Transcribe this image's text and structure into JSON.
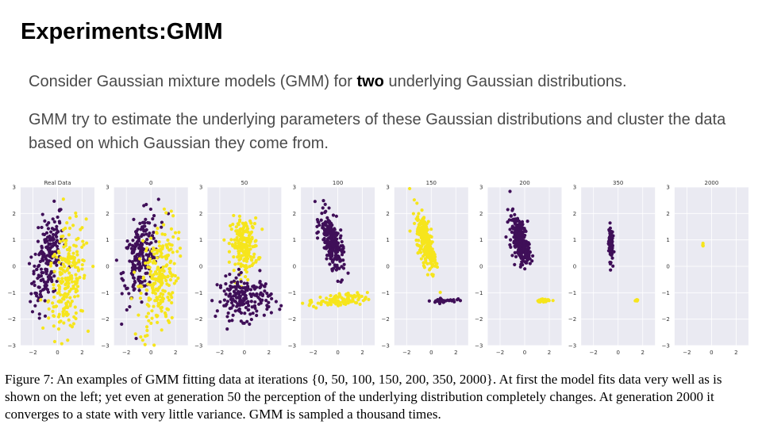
{
  "slide": {
    "title": "Experiments:GMM",
    "bullet1": {
      "pre": "Consider Gaussian mixture models (GMM) for ",
      "bold": "two",
      "post": " underlying Gaussian distributions."
    },
    "bullet2": "GMM try to estimate the underlying parameters of these Gaussian distributions and cluster the data based on which Gaussian they come from."
  },
  "colors": {
    "purple": "#3f0f58",
    "yellow": "#f6e51c"
  },
  "chart_data": [
    {
      "type": "scatter",
      "title": "Real Data",
      "xlim": [
        -3,
        3
      ],
      "ylim": [
        -3,
        3
      ],
      "xticks": [
        -2,
        0,
        2
      ],
      "yticks": [
        3,
        2,
        1,
        0,
        -1,
        -2,
        -3
      ],
      "series": [
        {
          "color": "purple",
          "cx": -0.8,
          "cy": 0.3,
          "sx": 0.65,
          "sy": 0.9,
          "rho": 0.5,
          "n": 200
        },
        {
          "color": "yellow",
          "cx": 0.8,
          "cy": -0.6,
          "sx": 0.75,
          "sy": 1.05,
          "rho": 0.3,
          "n": 220
        }
      ]
    },
    {
      "type": "scatter",
      "title": "0",
      "xlim": [
        -3,
        3
      ],
      "ylim": [
        -3,
        3
      ],
      "xticks": [
        -2,
        0,
        2
      ],
      "yticks": [
        3,
        2,
        1,
        0,
        -1,
        -2,
        -3
      ],
      "series": [
        {
          "color": "purple",
          "cx": -0.8,
          "cy": 0.4,
          "sx": 0.7,
          "sy": 0.8,
          "rho": 0.4,
          "n": 220
        },
        {
          "color": "yellow",
          "cx": 0.6,
          "cy": -0.5,
          "sx": 0.75,
          "sy": 1.1,
          "rho": 0.3,
          "n": 220
        }
      ]
    },
    {
      "type": "scatter",
      "title": "50",
      "xlim": [
        -3,
        3
      ],
      "ylim": [
        -3,
        3
      ],
      "xticks": [
        -2,
        0,
        2
      ],
      "yticks": [
        3,
        2,
        1,
        0,
        -1,
        -2,
        -3
      ],
      "series": [
        {
          "color": "yellow",
          "cx": 0.0,
          "cy": 0.8,
          "sx": 0.55,
          "sy": 0.5,
          "rho": 0.0,
          "n": 200
        },
        {
          "color": "purple",
          "cx": 0.0,
          "cy": -1.2,
          "sx": 1.1,
          "sy": 0.4,
          "rho": 0.0,
          "n": 200
        }
      ]
    },
    {
      "type": "scatter",
      "title": "100",
      "xlim": [
        -3,
        3
      ],
      "ylim": [
        -3,
        3
      ],
      "xticks": [
        -2,
        0,
        2
      ],
      "yticks": [
        3,
        2,
        1,
        0,
        -1,
        -2,
        -3
      ],
      "series": [
        {
          "color": "purple",
          "cx": -0.5,
          "cy": 0.9,
          "sx": 0.45,
          "sy": 0.55,
          "rho": -0.6,
          "n": 240
        },
        {
          "color": "yellow",
          "cx": 0.0,
          "cy": -1.3,
          "sx": 1.2,
          "sy": 0.13,
          "rho": 0.2,
          "n": 110
        }
      ]
    },
    {
      "type": "scatter",
      "title": "150",
      "xlim": [
        -3,
        3
      ],
      "ylim": [
        -3,
        3
      ],
      "xticks": [
        -2,
        0,
        2
      ],
      "yticks": [
        3,
        2,
        1,
        0,
        -1,
        -2,
        -3
      ],
      "series": [
        {
          "color": "yellow",
          "cx": -0.4,
          "cy": 0.9,
          "sx": 0.4,
          "sy": 0.55,
          "rho": -0.6,
          "n": 240
        },
        {
          "color": "purple",
          "cx": 1.0,
          "cy": -1.3,
          "sx": 0.5,
          "sy": 0.04,
          "rho": 0.3,
          "n": 35
        }
      ]
    },
    {
      "type": "scatter",
      "title": "200",
      "xlim": [
        -3,
        3
      ],
      "ylim": [
        -3,
        3
      ],
      "xticks": [
        -2,
        0,
        2
      ],
      "yticks": [
        3,
        2,
        1,
        0,
        -1,
        -2,
        -3
      ],
      "series": [
        {
          "color": "purple",
          "cx": -0.4,
          "cy": 1.0,
          "sx": 0.4,
          "sy": 0.45,
          "rho": -0.5,
          "n": 240
        },
        {
          "color": "yellow",
          "cx": 1.6,
          "cy": -1.3,
          "sx": 0.25,
          "sy": 0.03,
          "rho": 0.2,
          "n": 30
        }
      ]
    },
    {
      "type": "scatter",
      "title": "350",
      "xlim": [
        -3,
        3
      ],
      "ylim": [
        -3,
        3
      ],
      "xticks": [
        -2,
        0,
        2
      ],
      "yticks": [
        3,
        2,
        1,
        0,
        -1,
        -2,
        -3
      ],
      "series": [
        {
          "color": "purple",
          "cx": -0.6,
          "cy": 0.9,
          "sx": 0.08,
          "sy": 0.35,
          "rho": 0.0,
          "n": 110
        },
        {
          "color": "yellow",
          "cx": 1.5,
          "cy": -1.3,
          "sx": 0.06,
          "sy": 0.02,
          "rho": 0.0,
          "n": 14
        }
      ]
    },
    {
      "type": "scatter",
      "title": "2000",
      "xlim": [
        -3,
        3
      ],
      "ylim": [
        -3,
        3
      ],
      "xticks": [
        -2,
        0,
        2
      ],
      "yticks": [
        3,
        2,
        1,
        0,
        -1,
        -2,
        -3
      ],
      "series": [
        {
          "color": "yellow",
          "cx": -0.7,
          "cy": 0.8,
          "sx": 0.02,
          "sy": 0.02,
          "rho": 0.0,
          "n": 5
        }
      ]
    }
  ],
  "caption": "Figure 7: An examples of GMM fitting data at iterations {0, 50, 100, 150, 200, 350, 2000}. At first the model fits data very well as is shown on the left; yet even at generation 50 the perception of the underlying distribution completely changes. At generation 2000 it converges to a state with very little variance. GMM is sampled a thousand times."
}
